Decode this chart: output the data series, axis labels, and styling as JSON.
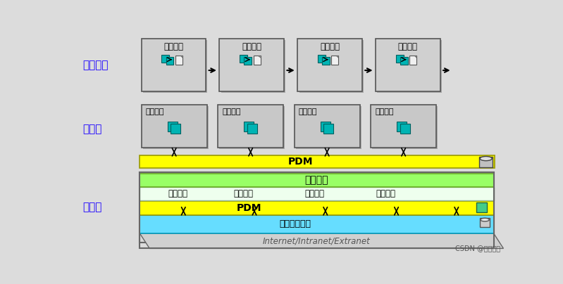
{
  "bg_color": "#dcdcdc",
  "title_color": "#1a00ff",
  "section_labels": [
    "过程序列",
    "过程链",
    "过程流"
  ],
  "process_labels": [
    "产品规划",
    "产品设计",
    "产品试验",
    "生产准备"
  ],
  "pdm_color": "#ffff00",
  "pdm_text": "PDM",
  "project_mgmt_color": "#99ff66",
  "project_mgmt_text": "项目管理",
  "cyan_bar_color": "#66ddff",
  "virtual_model_text": "虚拟产品模型",
  "internet_text": "Internet/Intranet/Extranet",
  "watermark": "CSDN @南河的南",
  "teal_color": "#00b4b4",
  "box_gray": "#c8c8c8",
  "shadow_color": "#aaaaaa",
  "white": "#ffffff"
}
